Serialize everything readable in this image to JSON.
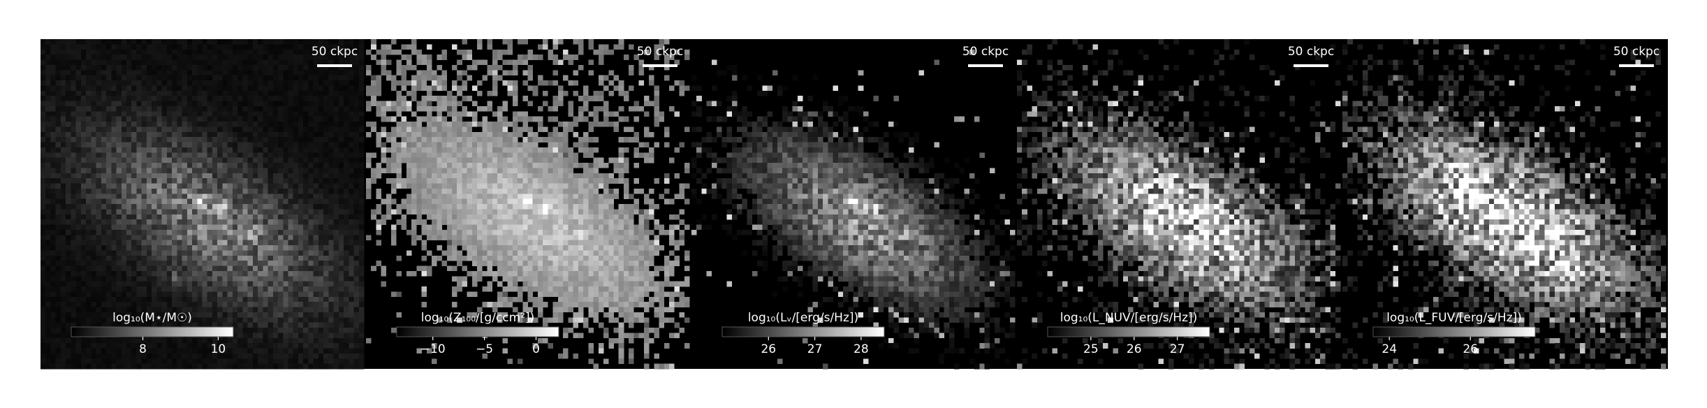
{
  "panels": [
    {
      "colorbar_label": "log₁₀(M⋆/M☉)",
      "clim": [
        6.1,
        10.4
      ],
      "ticks": [
        8,
        10
      ],
      "scale_bar": "50 ckpc"
    },
    {
      "colorbar_label": "log₁₀(Z₁₀₀/[g/ccm²])",
      "clim": [
        -13.5,
        2.2
      ],
      "ticks": [
        {
          "value": -10,
          "label": "−10"
        },
        {
          "value": -5,
          "label": "−5"
        },
        0
      ],
      "scale_bar": "50 ckpc"
    },
    {
      "colorbar_label": "log₁₀(Lᵥ/[erg/s/Hz])",
      "clim": [
        25.0,
        28.5
      ],
      "ticks": [
        26,
        27,
        28
      ],
      "scale_bar": "50 ckpc"
    },
    {
      "colorbar_label": "log₁₀(L_NUV/[erg/s/Hz])",
      "clim": [
        24.0,
        27.75
      ],
      "ticks": [
        25,
        26,
        27
      ],
      "scale_bar": "50 ckpc"
    },
    {
      "colorbar_label": "log₁₀(L_FUV/[erg/s/Hz])",
      "clim": [
        23.6,
        27.6
      ],
      "ticks": [
        24,
        26
      ],
      "scale_bar": "50 ckpc"
    }
  ]
}
